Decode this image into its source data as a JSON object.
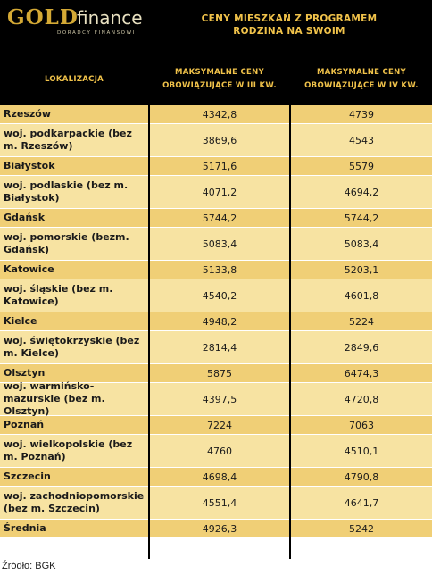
{
  "logo": {
    "gold": "GOLD",
    "finance": "finance",
    "subtitle": "DORADCY FINANSOWI"
  },
  "title": {
    "line1": "CENY MIESZKAŃ Z PROGRAMEM",
    "line2": "RODZINA NA SWOIM"
  },
  "columns": {
    "location": "LOKALIZACJA",
    "q3_line1": "MAKSYMALNE CENY",
    "q3_line2": "OBOWIĄZUJĄCE W III KW.",
    "q4_line1": "MAKSYMALNE CENY",
    "q4_line2": "OBOWIĄZUJĄCE W IV KW."
  },
  "rows": [
    {
      "location": "Rzeszów",
      "q3": "4342,8",
      "q4": "4739"
    },
    {
      "location": "woj. podkarpackie (bez m. Rzeszów)",
      "q3": "3869,6",
      "q4": "4543"
    },
    {
      "location": "Białystok",
      "q3": "5171,6",
      "q4": "5579"
    },
    {
      "location": "woj. podlaskie (bez m. Białystok)",
      "q3": "4071,2",
      "q4": "4694,2"
    },
    {
      "location": "Gdańsk",
      "q3": "5744,2",
      "q4": "5744,2"
    },
    {
      "location": "woj. pomorskie (bezm. Gdańsk)",
      "q3": "5083,4",
      "q4": "5083,4"
    },
    {
      "location": "Katowice",
      "q3": "5133,8",
      "q4": "5203,1"
    },
    {
      "location": "woj. śląskie (bez m. Katowice)",
      "q3": "4540,2",
      "q4": "4601,8"
    },
    {
      "location": "Kielce",
      "q3": "4948,2",
      "q4": "5224"
    },
    {
      "location": "woj. świętokrzyskie (bez m. Kielce)",
      "q3": "2814,4",
      "q4": "2849,6"
    },
    {
      "location": "Olsztyn",
      "q3": "5875",
      "q4": "6474,3"
    },
    {
      "location": "woj. warmińsko-mazurskie (bez m. Olsztyn)",
      "q3": "4397,5",
      "q4": "4720,8"
    },
    {
      "location": "Poznań",
      "q3": "7224",
      "q4": "7063"
    },
    {
      "location": "woj. wielkopolskie (bez m. Poznań)",
      "q3": "4760",
      "q4": "4510,1"
    },
    {
      "location": "Szczecin",
      "q3": "4698,4",
      "q4": "4790,8"
    },
    {
      "location": "woj. zachodniopomorskie (bez m. Szczecin)",
      "q3": "4551,4",
      "q4": "4641,7"
    },
    {
      "location": "Średnia",
      "q3": "4926,3",
      "q4": "5242"
    }
  ],
  "source": "Źródło: BGK",
  "colors": {
    "header_bg": "#000000",
    "gold_text": "#f0c24a",
    "row_light": "#f7e3a2",
    "row_dark": "#f0cf76"
  }
}
